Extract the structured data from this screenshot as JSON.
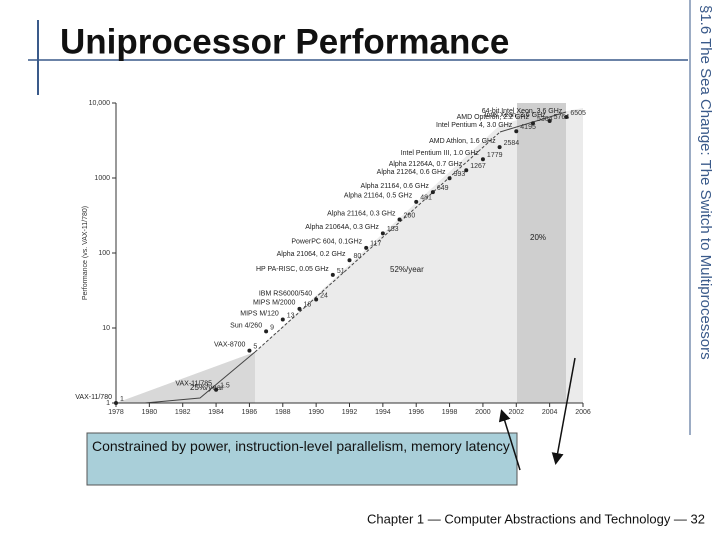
{
  "title": "Uniprocessor Performance",
  "section": "§1.6 The Sea Change: The Switch to Multiprocessors",
  "callout": "Constrained by power, instruction-level parallelism, memory latency",
  "footer": "Chapter 1 — Computer Abstractions and Technology — 32",
  "chart_data": {
    "type": "scatter",
    "ylabel": "Performance (vs. VAX-11/780)",
    "x": [
      1978,
      1984,
      1986,
      1987,
      1988,
      1989,
      1990,
      1991,
      1992,
      1993,
      1994,
      1995,
      1996,
      1997,
      1998,
      1999,
      2000,
      2001,
      2002,
      2003,
      2004,
      2005
    ],
    "values": [
      1,
      1.5,
      5,
      9,
      13,
      18,
      24,
      51,
      80,
      117,
      183,
      280,
      481,
      649,
      993,
      1267,
      1779,
      2584,
      4195,
      5364,
      5764,
      6505
    ],
    "names": [
      "VAX-11/780",
      "VAX-11/785",
      "VAX-8700",
      "Sun 4/260",
      "MIPS M/120",
      "MIPS M/2000",
      "IBM RS6000/540",
      "HP PA-RISC, 0.05 GHz",
      "Alpha 21064, 0.2 GHz",
      "PowerPC 604, 0.1GHz",
      "Alpha 21064A, 0.3 GHz",
      "Alpha 21164, 0.3 GHz",
      "Alpha 21164, 0.5 GHz",
      "Alpha 21164, 0.6 GHz",
      "Alpha 21264, 0.6 GHz",
      "Alpha 21264A, 0.7 GHz",
      "Intel Pentium III, 1.0 GHz",
      "AMD Athlon, 1.6 GHz",
      "Intel Pentium 4, 3.0 GHz",
      "AMD Opteron, 2.2 GHz",
      "Intel Xeon, 3.6 GHz",
      "64-bit Intel Xeon, 3.6 GHz"
    ],
    "annotations": [
      "25%/year",
      "52%/year",
      "20%"
    ],
    "color": "#222222",
    "log_y": true,
    "xlim": [
      1978,
      2006
    ],
    "xticks": [
      1978,
      1980,
      1982,
      1984,
      1986,
      1988,
      1990,
      1992,
      1994,
      1996,
      1998,
      2000,
      2002,
      2004,
      2006
    ],
    "ylim": [
      1,
      10000
    ],
    "yticks": [
      1,
      10,
      100,
      1000,
      {
        "value": 10000,
        "label": "10,000"
      }
    ]
  }
}
